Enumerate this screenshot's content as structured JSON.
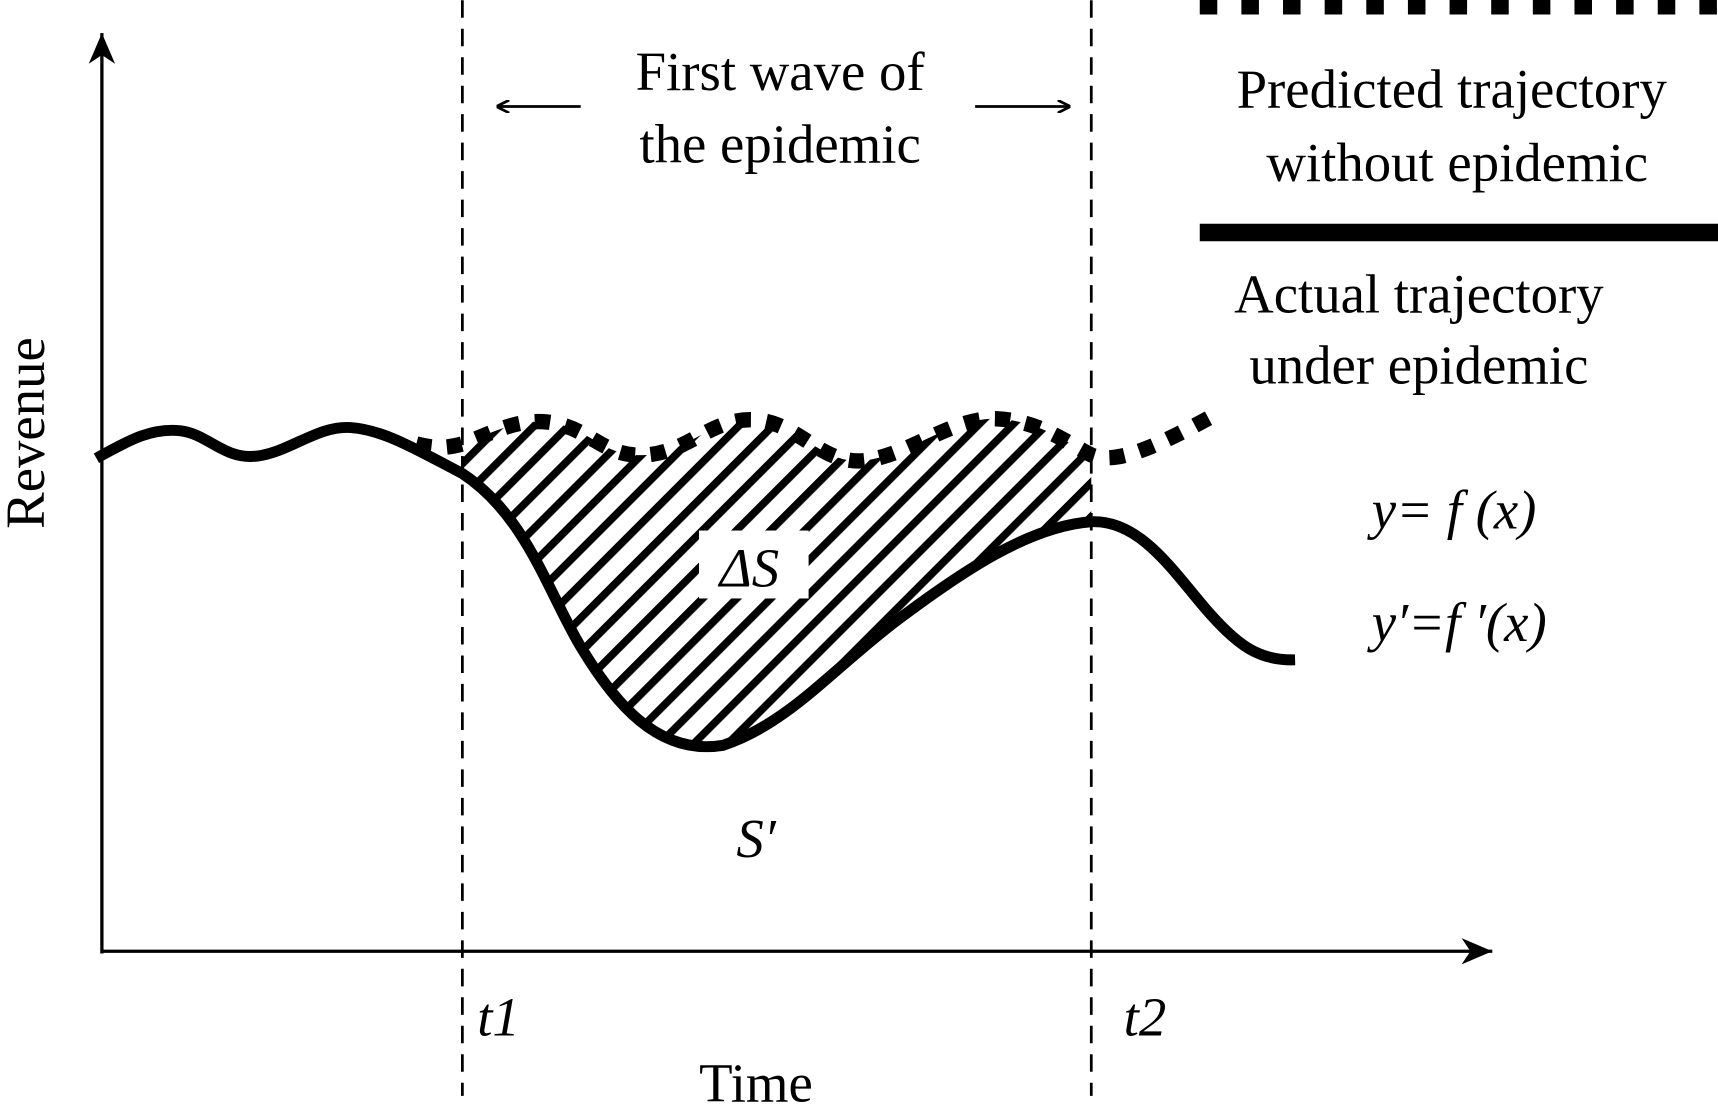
{
  "title": {
    "line1": "First wave of",
    "line2": "the epidemic"
  },
  "axes": {
    "y_label": "Revenue",
    "x_label": "Time",
    "t1": "t1",
    "t2": "t2"
  },
  "legend": {
    "predicted_line1": "Predicted trajectory",
    "predicted_line2": "without epidemic",
    "actual_line1": "Actual trajectory",
    "actual_line2": "under epidemic"
  },
  "equations": {
    "predicted": "y= f (x)",
    "actual": "y′=f ′(x)"
  },
  "areas": {
    "delta": "ΔS",
    "actual": "S′"
  },
  "colors": {
    "ink": "#000000",
    "background": "#ffffff"
  }
}
